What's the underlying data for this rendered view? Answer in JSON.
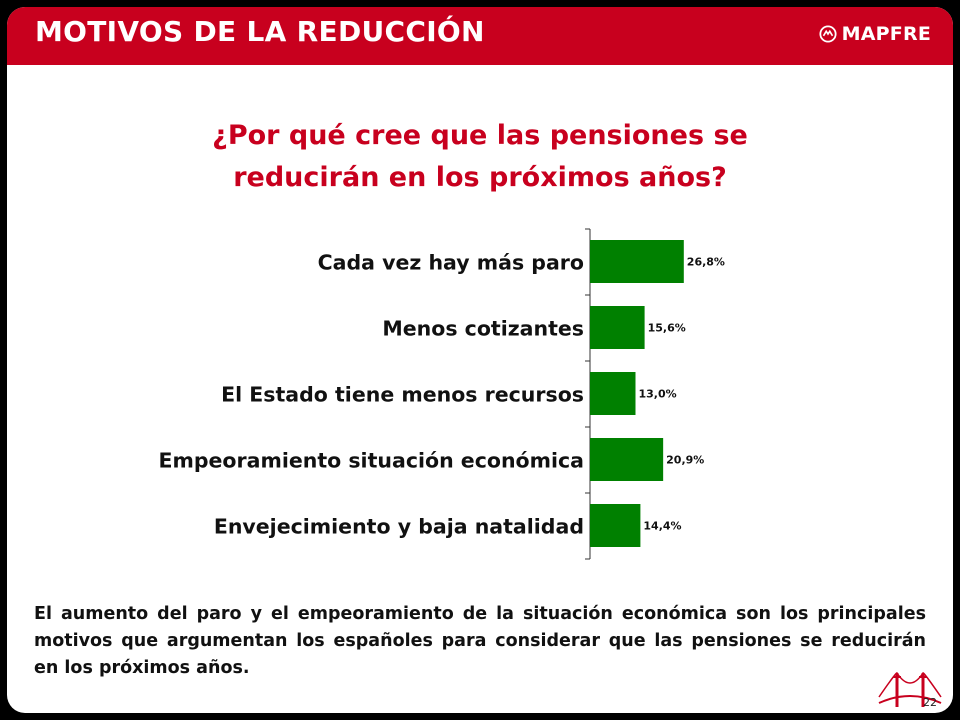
{
  "header": {
    "title": "MOTIVOS DE LA REDUCCIÓN",
    "brand": "MAPFRE"
  },
  "question": {
    "line1": "¿Por qué cree que las pensiones se",
    "line2": "reducirán en los próximos años?"
  },
  "chart_data": {
    "type": "bar",
    "orientation": "horizontal",
    "categories": [
      "Cada vez hay más paro",
      "Menos cotizantes",
      "El Estado tiene menos recursos",
      "Empeoramiento situación económica",
      "Envejecimiento y baja natalidad"
    ],
    "values": [
      26.8,
      15.6,
      13.0,
      20.9,
      14.4
    ],
    "value_labels": [
      "26,8%",
      "15,6%",
      "13,0%",
      "20,9%",
      "14,4%"
    ],
    "unit": "%",
    "bar_color": "#008000",
    "xlim": [
      0,
      100
    ],
    "grid": false,
    "legend": "none"
  },
  "summary": "El aumento del paro y el empeoramiento de la situación económica son los principales motivos que argumentan los españoles para considerar que las pensiones se reducirán en los próximos años.",
  "page_number": "22",
  "colors": {
    "brand_red": "#c8001e",
    "background": "#000000"
  }
}
